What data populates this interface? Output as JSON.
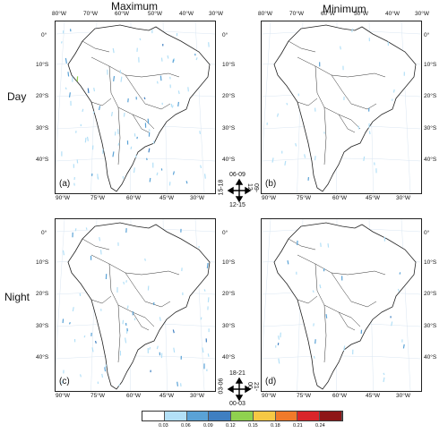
{
  "column_titles": [
    "Maximum",
    "Minimum"
  ],
  "row_titles": [
    "Day",
    "Night"
  ],
  "panels": [
    {
      "label": "(a)"
    },
    {
      "label": "(b)"
    },
    {
      "label": "(c)"
    },
    {
      "label": "(d)"
    }
  ],
  "top_lon_ticks": [
    "80°W",
    "70°W",
    "60°W",
    "50°W",
    "40°W",
    "30°W"
  ],
  "bottom_lon_ticks": [
    "90°W",
    "75°W",
    "60°W",
    "45°W",
    "30°W"
  ],
  "lat_ticks": [
    "0°",
    "10°S",
    "20°S",
    "30°S",
    "40°S"
  ],
  "compass_day": {
    "top": "06-09",
    "left": "15-18",
    "right": "09-12",
    "bottom": "12-15"
  },
  "compass_night": {
    "top": "18-21",
    "left": "03-06",
    "right": "21-00",
    "bottom": "00-03"
  },
  "colorbar": {
    "labels": [
      "0.03",
      "0.06",
      "0.09",
      "0.12",
      "0.15",
      "0.18",
      "0.21",
      "0.24"
    ],
    "colors": [
      "#ffffff",
      "#b3e0f7",
      "#5aa2d6",
      "#3f7fc1",
      "#8fd14f",
      "#f6c844",
      "#f07a2a",
      "#d9252a",
      "#8e1617"
    ]
  }
}
